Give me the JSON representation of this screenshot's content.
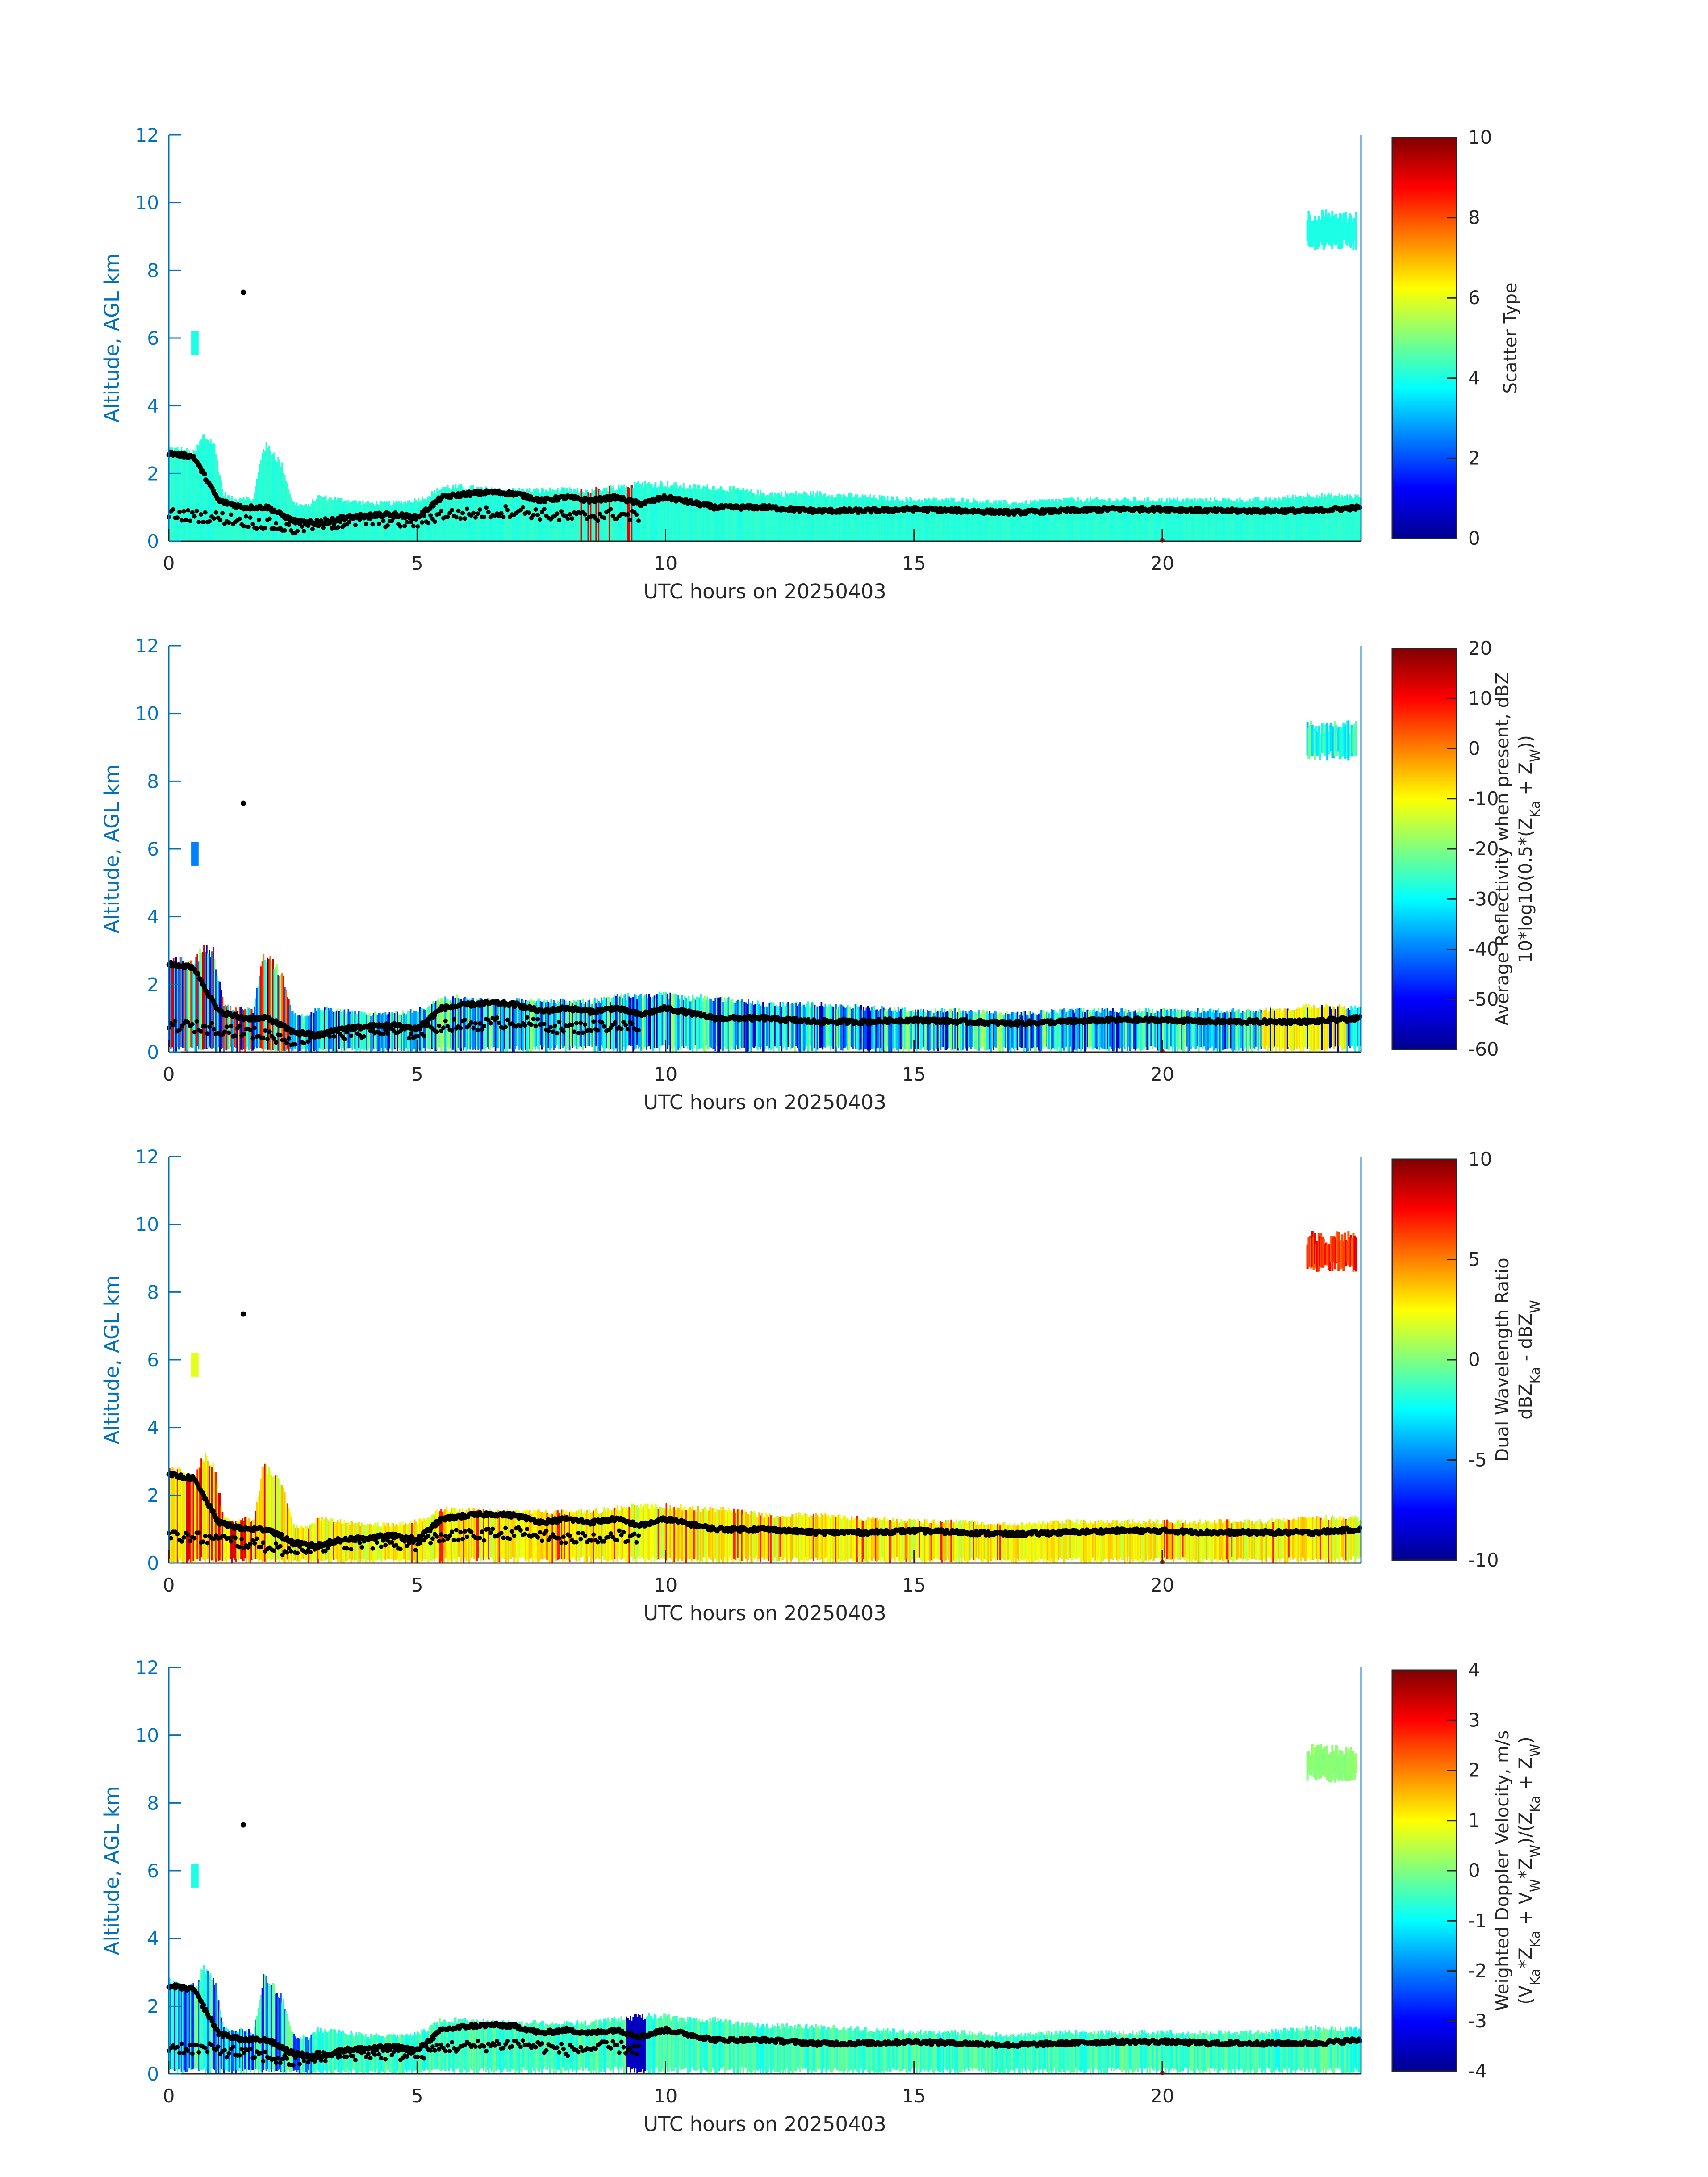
{
  "figure": {
    "x_axis_label": "UTC hours on 20250403",
    "y_axis_label": "Altitude, AGL km",
    "axis_color": "#0072bd",
    "text_color": "#262626"
  },
  "chart_data": [
    {
      "type": "heatmap",
      "xlabel": "UTC hours on 20250403",
      "ylabel": "Altitude, AGL km",
      "xlim": [
        0,
        24
      ],
      "ylim": [
        0,
        12
      ],
      "xticks": [
        0,
        5,
        10,
        15,
        20
      ],
      "yticks": [
        0,
        2,
        4,
        6,
        8,
        10,
        12
      ],
      "colorbar": {
        "label_lines": [
          "Scatter Type"
        ],
        "clim": [
          0,
          10
        ],
        "ticks": [
          0,
          2,
          4,
          6,
          8,
          10
        ],
        "colormap": "jet"
      },
      "fill_value": 4
    },
    {
      "type": "heatmap",
      "xlabel": "UTC hours on 20250403",
      "ylabel": "Altitude, AGL km",
      "xlim": [
        0,
        24
      ],
      "ylim": [
        0,
        12
      ],
      "xticks": [
        0,
        5,
        10,
        15,
        20
      ],
      "yticks": [
        0,
        2,
        4,
        6,
        8,
        10,
        12
      ],
      "colorbar": {
        "label_lines": [
          "Average Reflectivity when present, dBZ",
          "10*log10(0.5*(Z_Ka + Z_W))"
        ],
        "clim": [
          -60,
          20
        ],
        "ticks": [
          -60,
          -50,
          -40,
          -30,
          -20,
          -10,
          0,
          10,
          20
        ],
        "colormap": "jet"
      },
      "fill_value": -30
    },
    {
      "type": "heatmap",
      "xlabel": "UTC hours on 20250403",
      "ylabel": "Altitude, AGL km",
      "xlim": [
        0,
        24
      ],
      "ylim": [
        0,
        12
      ],
      "xticks": [
        0,
        5,
        10,
        15,
        20
      ],
      "yticks": [
        0,
        2,
        4,
        6,
        8,
        10,
        12
      ],
      "colorbar": {
        "label_lines": [
          "Dual Wavelength Ratio",
          "dBZ_Ka - dBZ_W"
        ],
        "clim": [
          -10,
          10
        ],
        "ticks": [
          -10,
          -5,
          0,
          5,
          10
        ],
        "colormap": "jet"
      },
      "fill_value": 2.5
    },
    {
      "type": "heatmap",
      "xlabel": "UTC hours on 20250403",
      "ylabel": "Altitude, AGL km",
      "xlim": [
        0,
        24
      ],
      "ylim": [
        0,
        12
      ],
      "xticks": [
        0,
        5,
        10,
        15,
        20
      ],
      "yticks": [
        0,
        2,
        4,
        6,
        8,
        10,
        12
      ],
      "colorbar": {
        "label_lines": [
          "Weighted Doppler Velocity, m/s",
          "(V_Ka*Z_Ka + V_W*Z_W)/(Z_Ka + Z_W)"
        ],
        "clim": [
          -4,
          4
        ],
        "ticks": [
          -4,
          -3,
          -2,
          -1,
          0,
          1,
          2,
          3,
          4
        ],
        "colormap": "jet"
      },
      "fill_value": -0.5
    }
  ],
  "cloud_top_km": {
    "hours": [
      0,
      0.3,
      0.5,
      0.7,
      0.9,
      1.1,
      1.3,
      1.5,
      1.7,
      1.9,
      2.1,
      2.3,
      2.5,
      2.8,
      3.0,
      3.5,
      4,
      4.5,
      5,
      5.2,
      5.5,
      6,
      6.5,
      7,
      7.5,
      8,
      8.5,
      9,
      9.5,
      10,
      10.5,
      11,
      11.5,
      12,
      12.5,
      13,
      14,
      15,
      16,
      17,
      18,
      19,
      20,
      21,
      22,
      23,
      24
    ],
    "km": [
      2.9,
      2.8,
      2.7,
      3.3,
      3.1,
      1.5,
      1.3,
      1.4,
      1.3,
      3.0,
      2.8,
      2.3,
      1.2,
      1.1,
      1.4,
      1.3,
      1.2,
      1.2,
      1.3,
      1.4,
      1.7,
      1.7,
      1.6,
      1.6,
      1.6,
      1.6,
      1.6,
      1.7,
      1.8,
      1.8,
      1.7,
      1.7,
      1.6,
      1.5,
      1.5,
      1.5,
      1.4,
      1.3,
      1.3,
      1.2,
      1.3,
      1.3,
      1.3,
      1.3,
      1.3,
      1.45,
      1.4
    ]
  },
  "cloud_base_km": {
    "hours": [
      0,
      0.5,
      1.0,
      1.5,
      2.0,
      2.5,
      3.0,
      4,
      5,
      5.5,
      6,
      7,
      8,
      9,
      10,
      11,
      12,
      13,
      14,
      15,
      16,
      17,
      18,
      19,
      20,
      21,
      22,
      23,
      24
    ],
    "km": [
      0.85,
      0.9,
      0.8,
      0.8,
      0.7,
      0.6,
      0.65,
      0.7,
      0.6,
      0.85,
      0.9,
      1.0,
      1.0,
      1.05,
      1.1,
      1.0,
      0.95,
      0.9,
      0.85,
      0.85,
      0.85,
      0.8,
      0.85,
      0.9,
      0.95,
      0.9,
      0.9,
      0.85,
      1.0
    ]
  },
  "upper_cloud": {
    "hours": [
      22.9,
      23.9
    ],
    "km": [
      8.6,
      9.8
    ]
  },
  "mid_cloud": {
    "hours": [
      0.45,
      0.6
    ],
    "km": [
      5.5,
      6.2
    ]
  },
  "isolated_point": {
    "hour": 1.5,
    "km": 7.35
  },
  "lidar_base_km": {
    "hours": [
      0,
      0.5,
      1.0,
      1.5,
      2.0,
      2.5,
      3,
      3.5,
      4,
      4.5,
      5,
      5.5,
      6,
      6.5,
      7,
      7.5,
      8,
      8.5,
      9,
      9.5,
      10,
      11,
      12,
      13,
      14,
      15,
      16,
      17,
      18,
      19,
      20,
      21,
      22,
      23,
      24
    ],
    "km": [
      2.6,
      2.5,
      1.2,
      1.0,
      1.0,
      0.6,
      0.5,
      0.7,
      0.75,
      0.8,
      0.7,
      1.3,
      1.4,
      1.45,
      1.4,
      1.2,
      1.3,
      1.2,
      1.3,
      1.1,
      1.3,
      1.0,
      1.0,
      0.9,
      0.9,
      0.95,
      0.9,
      0.85,
      0.9,
      0.95,
      0.95,
      0.9,
      0.9,
      0.9,
      1.0
    ]
  },
  "lidar_low_layer_km": {
    "hours": [
      0,
      0.5,
      1.0,
      1.5,
      2.0,
      2.5,
      3,
      4,
      5,
      5.5,
      6,
      7,
      8,
      9,
      9.5
    ],
    "km": [
      0.8,
      0.75,
      0.7,
      0.6,
      0.5,
      0.35,
      0.5,
      0.6,
      0.55,
      0.8,
      0.8,
      0.9,
      0.7,
      0.8,
      0.7
    ]
  }
}
